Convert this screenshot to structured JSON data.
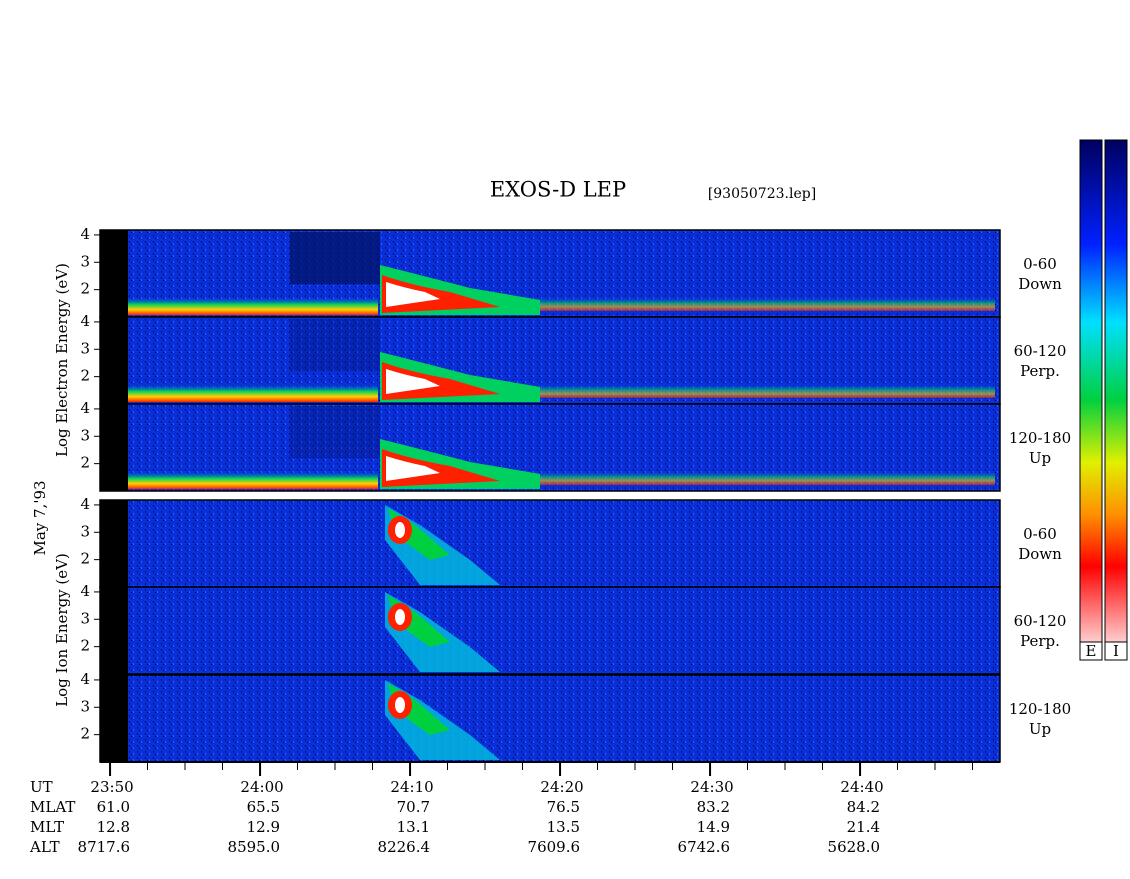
{
  "chart_data": {
    "type": "spectrogram",
    "title": "EXOS-D LEP",
    "subtitle": "[93050723.lep]",
    "date_label": "May 7,'93",
    "electron_axis_label": "Log Electron Energy (eV)",
    "ion_axis_label": "Log Ion Energy (eV)",
    "ylim": [
      1,
      4.18
    ],
    "yticks": [
      2,
      3,
      4
    ],
    "xlim": [
      1429.33,
      1489.33
    ],
    "xticks": [
      {
        "value": 1430,
        "label": "23:50"
      },
      {
        "value": 1440,
        "label": "24:00"
      },
      {
        "value": 1450,
        "label": "24:10"
      },
      {
        "value": 1460,
        "label": "24:20"
      },
      {
        "value": 1470,
        "label": "24:30"
      },
      {
        "value": 1480,
        "label": "24:40"
      }
    ],
    "panels": [
      {
        "species": "electron",
        "label": [
          "0-60",
          "Down"
        ]
      },
      {
        "species": "electron",
        "label": [
          "60-120",
          "Perp."
        ]
      },
      {
        "species": "electron",
        "label": [
          "120-180",
          "Up"
        ]
      },
      {
        "species": "ion",
        "label": [
          "0-60",
          "Down"
        ]
      },
      {
        "species": "ion",
        "label": [
          "60-120",
          "Perp."
        ]
      },
      {
        "species": "ion",
        "label": [
          "120-180",
          "Up"
        ]
      }
    ],
    "orbit": {
      "row_labels": [
        "UT",
        "MLAT",
        "MLT",
        "ALT"
      ],
      "rows": [
        [
          "61.0",
          "65.5",
          "70.7",
          "76.5",
          "83.2",
          "84.2"
        ],
        [
          "12.8",
          "12.9",
          "13.1",
          "13.5",
          "14.9",
          "21.4"
        ],
        [
          "8717.6",
          "8595.0",
          "8226.4",
          "7609.6",
          "6742.6",
          "5628.0"
        ]
      ]
    },
    "colorbars": [
      "E",
      "I"
    ]
  }
}
